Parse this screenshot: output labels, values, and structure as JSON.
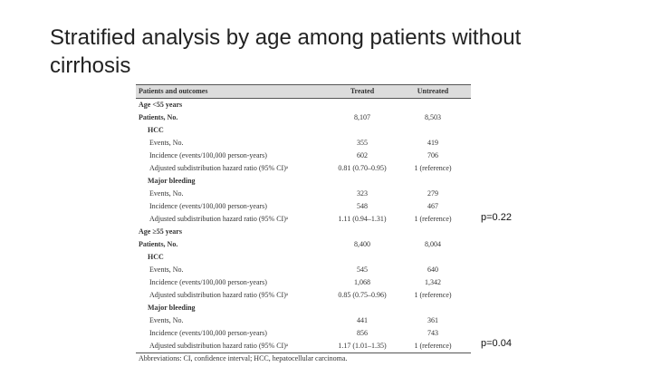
{
  "title": "Stratified analysis by age among patients without cirrhosis",
  "table": {
    "header": [
      "Patients and outcomes",
      "Treated",
      "Untreated"
    ],
    "rows": [
      [
        "Age <55 years"
      ],
      [
        "Patients, No.",
        "8,107",
        "8,503"
      ],
      [
        "HCC"
      ],
      [
        "Events, No.",
        "355",
        "419"
      ],
      [
        "Incidence (events/100,000 person-years)",
        "602",
        "706"
      ],
      [
        "Adjusted subdistribution hazard ratio (95% CI)ᵃ",
        "0.81 (0.70–0.95)",
        "1 (reference)"
      ],
      [
        "Major bleeding"
      ],
      [
        "Events, No.",
        "323",
        "279"
      ],
      [
        "Incidence (events/100,000 person-years)",
        "548",
        "467"
      ],
      [
        "Adjusted subdistribution hazard ratio (95% CI)ᵃ",
        "1.11 (0.94–1.31)",
        "1 (reference)"
      ],
      [
        "Age ≥55 years"
      ],
      [
        "Patients, No.",
        "8,400",
        "8,004"
      ],
      [
        "HCC"
      ],
      [
        "Events, No.",
        "545",
        "640"
      ],
      [
        "Incidence (events/100,000 person-years)",
        "1,068",
        "1,342"
      ],
      [
        "Adjusted subdistribution hazard ratio (95% CI)ᵃ",
        "0.85 (0.75–0.96)",
        "1 (reference)"
      ],
      [
        "Major bleeding"
      ],
      [
        "Events, No.",
        "441",
        "361"
      ],
      [
        "Incidence (events/100,000 person-years)",
        "856",
        "743"
      ],
      [
        "Adjusted subdistribution hazard ratio (95% CI)ᵃ",
        "1.17 (1.01–1.35)",
        "1 (reference)"
      ]
    ],
    "footnote": "Abbreviations: CI, confidence interval; HCC, hepatocellular carcinoma."
  },
  "annotations": [
    "p=0.22",
    "p=0.04"
  ]
}
